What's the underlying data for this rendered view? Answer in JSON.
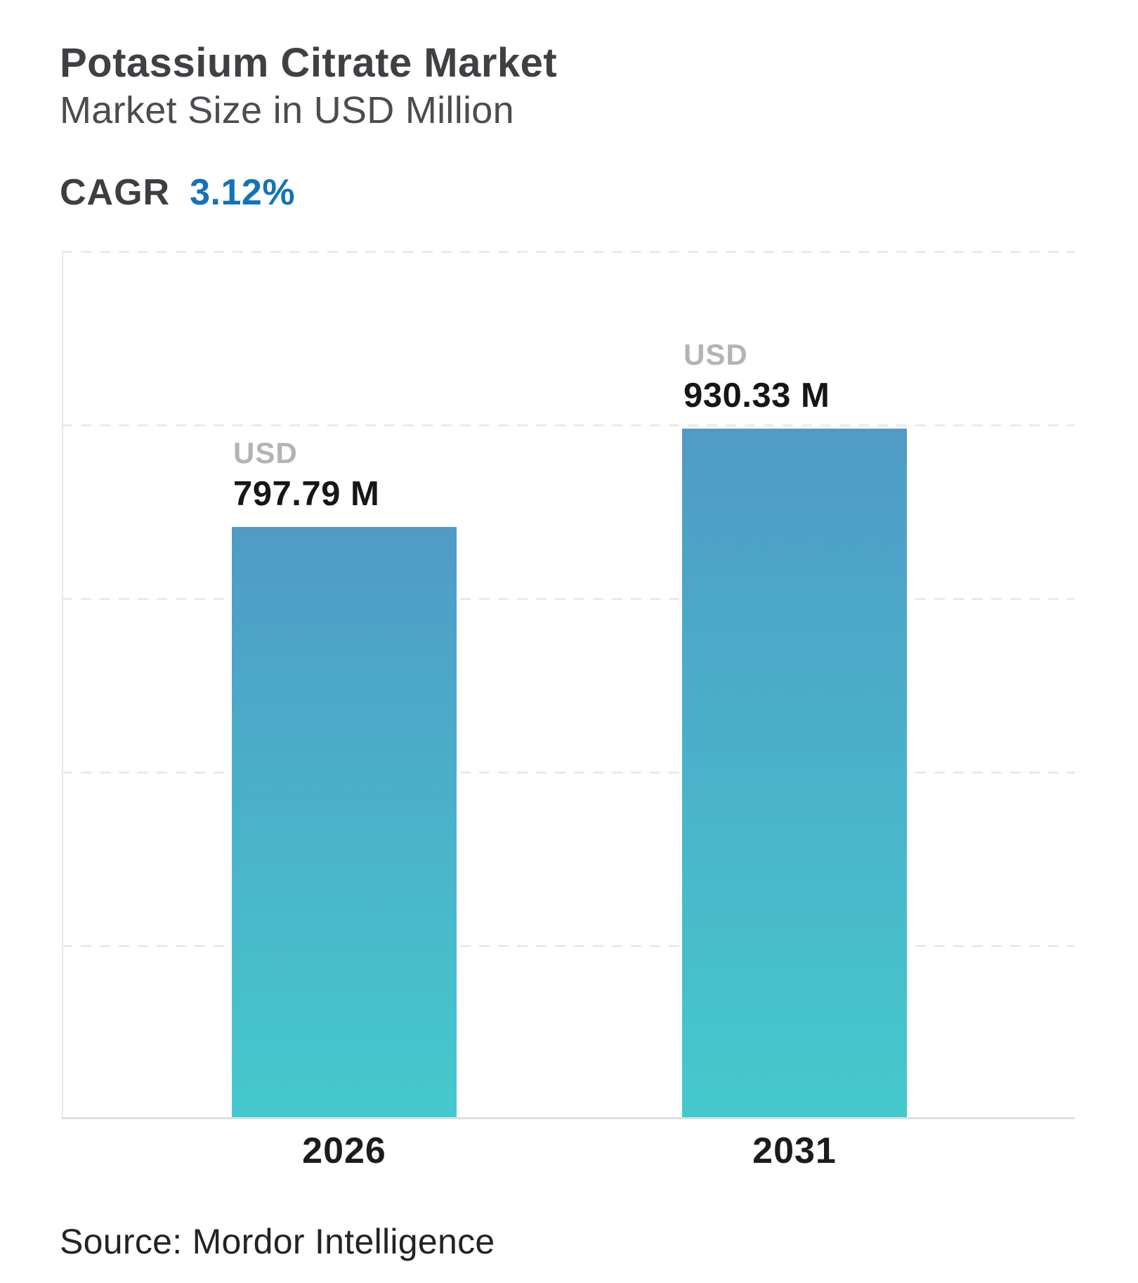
{
  "header": {
    "title": "Potassium Citrate Market",
    "subtitle": "Market Size in USD Million",
    "cagr_label": "CAGR",
    "cagr_value": "3.12%"
  },
  "chart_data": {
    "type": "bar",
    "title": "Potassium Citrate Market",
    "subtitle": "Market Size in USD Million",
    "unit": "USD Million",
    "categories": [
      "2026",
      "2031"
    ],
    "series": [
      {
        "name": "Market Size",
        "values": [
          797.79,
          930.33
        ]
      }
    ],
    "values": [
      797.79,
      930.33
    ],
    "bar_labels": [
      {
        "currency": "USD",
        "value": "797.79 M"
      },
      {
        "currency": "USD",
        "value": "930.33 M"
      }
    ],
    "cagr_percent": "3.12%",
    "ylim": [
      0,
      1170
    ],
    "xlabel": "",
    "ylabel": "",
    "grid": "horizontal-dashed",
    "legend": "none",
    "bar_gradient_top": "#4F9BC6",
    "bar_gradient_bottom": "#45C9CD"
  },
  "colors": {
    "accent_blue": "#1273b8",
    "bar_top": "#4F9BC6",
    "bar_bottom": "#45C9CD",
    "grid_line": "#e9eaeb",
    "axis_line": "#dddedf",
    "muted_label": "#b1b3b5"
  },
  "footer": {
    "source": "Source: Mordor Intelligence"
  }
}
